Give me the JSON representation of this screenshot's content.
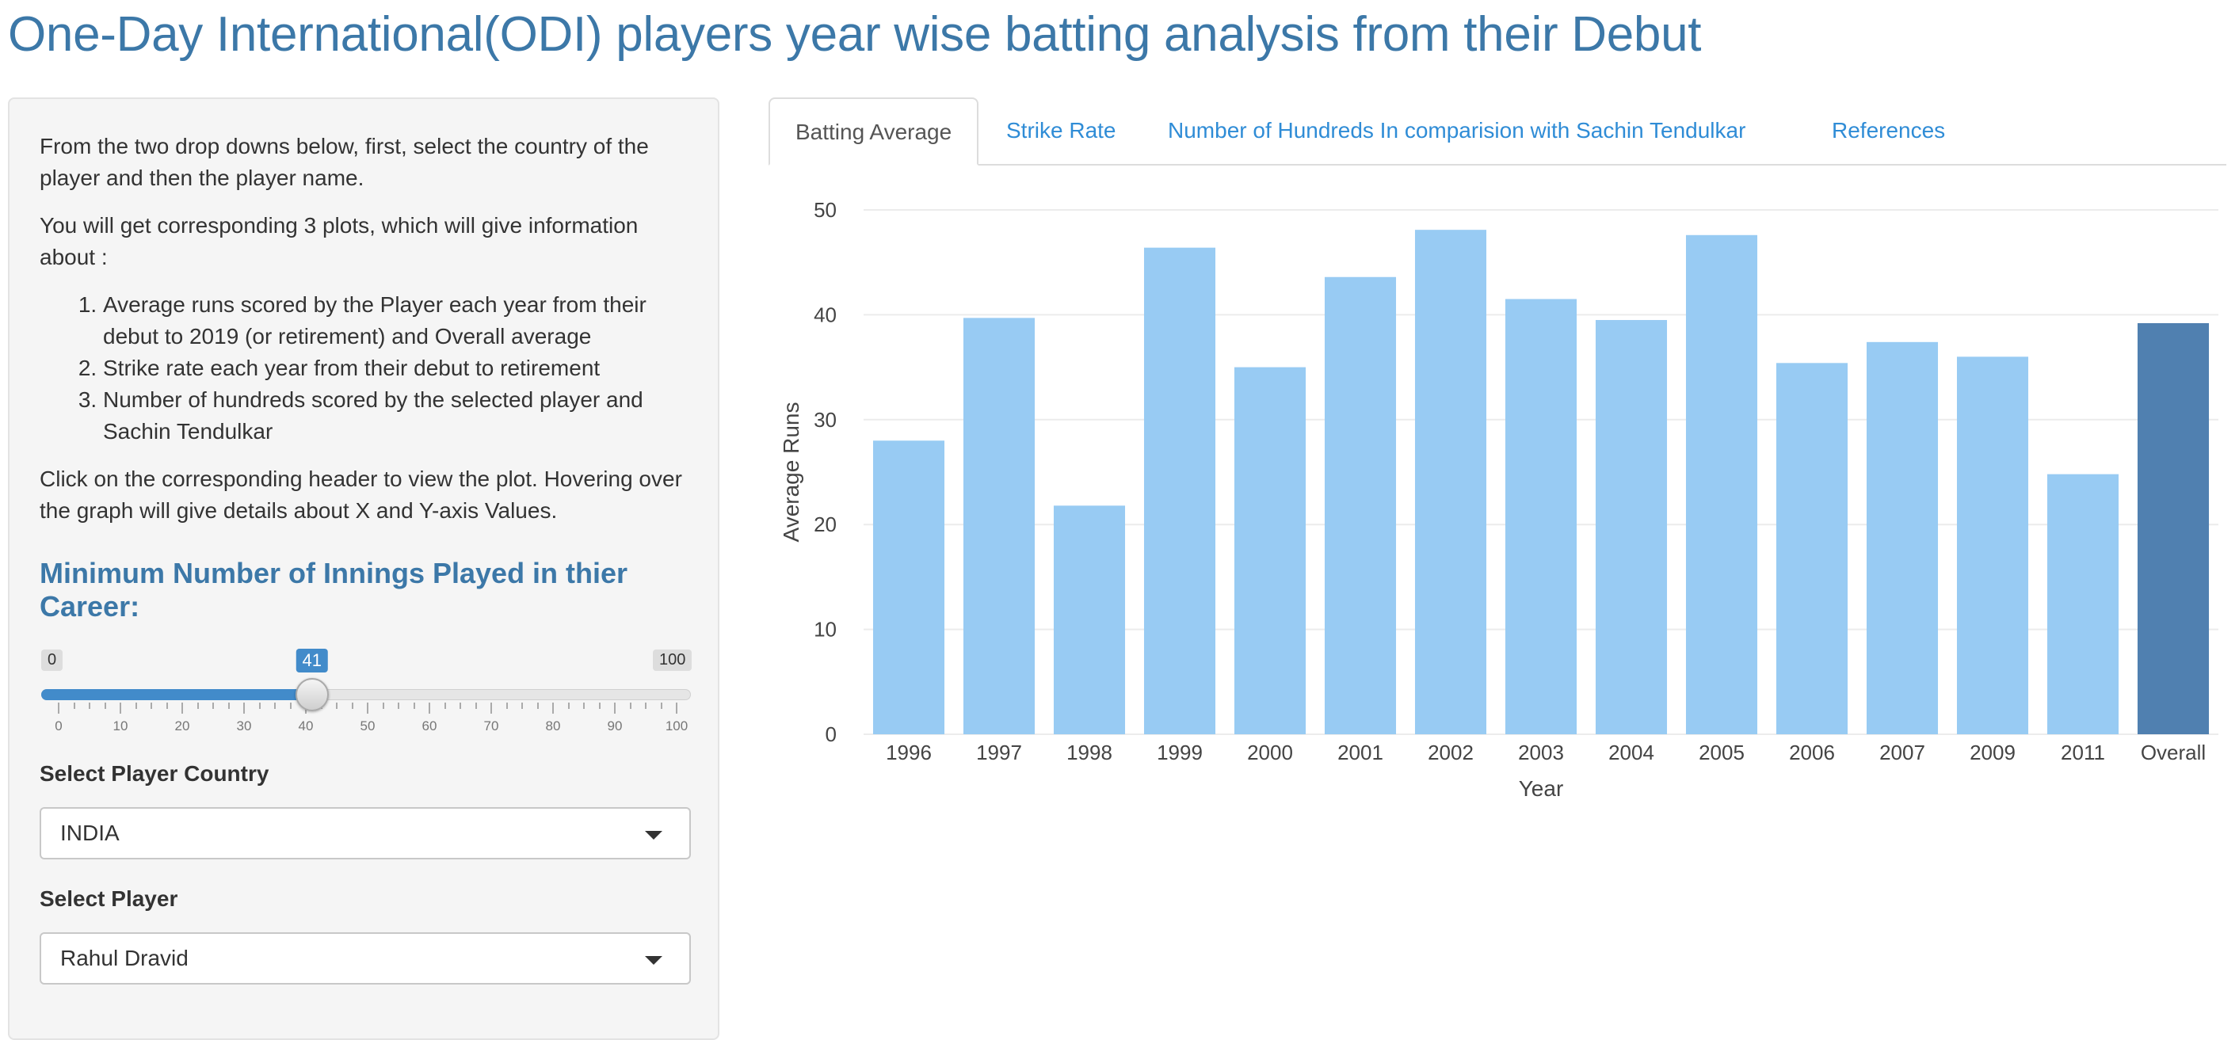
{
  "page": {
    "title": "One-Day International(ODI) players year wise batting analysis from their Debut"
  },
  "sidebar": {
    "intro_1": "From the two drop downs below, first, select the country of the player and then the player name.",
    "intro_2": "You will get corresponding 3 plots, which will give information about :",
    "list": [
      "Average runs scored by the Player each year from their debut to 2019 (or retirement) and Overall average",
      "Strike rate each year from their debut to retirement",
      "Number of hundreds scored by the selected player and Sachin Tendulkar"
    ],
    "intro_3": "Click on the corresponding header to view the plot. Hovering over the graph will give details about X and Y-axis Values.",
    "slider": {
      "title": "Minimum Number of Innings Played in thier Career:",
      "min": 0,
      "max": 100,
      "value": 41,
      "min_label": "0",
      "max_label": "100",
      "value_label": "41",
      "ticks": [
        "0",
        "10",
        "20",
        "30",
        "40",
        "50",
        "60",
        "70",
        "80",
        "90",
        "100"
      ]
    },
    "country": {
      "label": "Select Player Country",
      "value": "INDIA"
    },
    "player": {
      "label": "Select Player",
      "value": "Rahul Dravid"
    }
  },
  "tabs": [
    {
      "label": "Batting Average",
      "active": true
    },
    {
      "label": "Strike Rate",
      "active": false
    },
    {
      "label": "Number of Hundreds In comparision with Sachin Tendulkar",
      "active": false
    },
    {
      "label": "References",
      "active": false
    }
  ],
  "chart_data": {
    "type": "bar",
    "xlabel": "Year",
    "ylabel": "Average Runs",
    "ylim": [
      0,
      50
    ],
    "yticks": [
      0,
      10,
      20,
      30,
      40,
      50
    ],
    "categories": [
      "1996",
      "1997",
      "1998",
      "1999",
      "2000",
      "2001",
      "2002",
      "2003",
      "2004",
      "2005",
      "2006",
      "2007",
      "2009",
      "2011",
      "Overall"
    ],
    "values": [
      28.0,
      39.7,
      21.8,
      46.4,
      35.0,
      43.6,
      48.1,
      41.5,
      39.5,
      47.6,
      35.4,
      37.4,
      36.0,
      24.8,
      39.2
    ],
    "grid": true,
    "colors": {
      "bar": "#98cbf3",
      "highlight": "#5080b0"
    },
    "highlight_category": "Overall"
  }
}
